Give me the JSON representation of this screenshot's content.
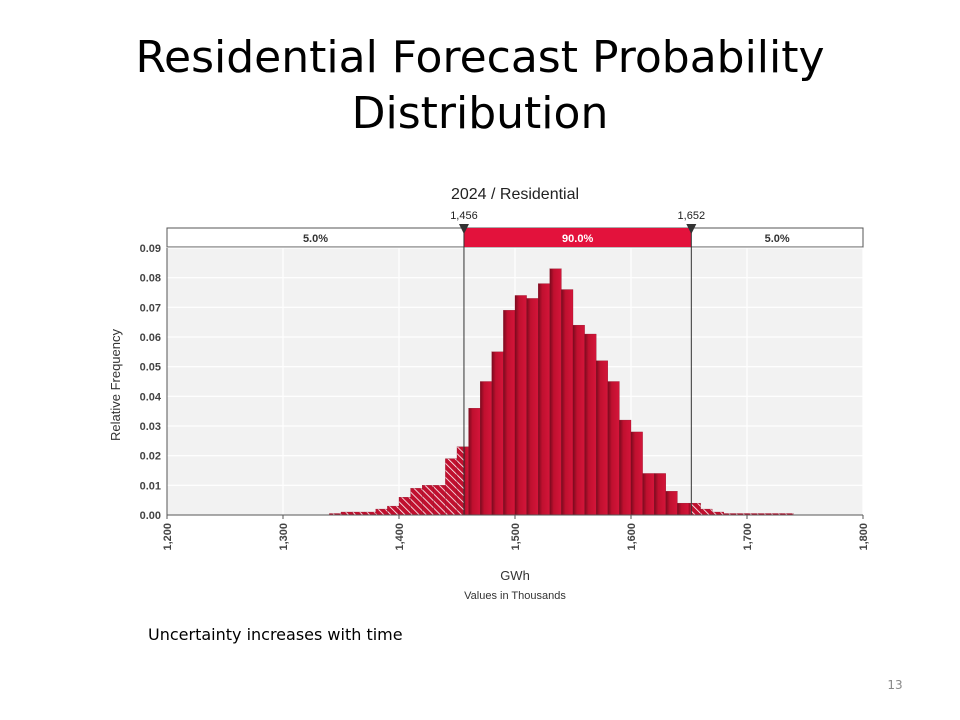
{
  "slide": {
    "title_line1": "Residential Forecast Probability",
    "title_line2": "Distribution",
    "caption": "Uncertainty increases with time",
    "page_number": "13"
  },
  "chart_data": {
    "type": "bar",
    "title": "2024 / Residential",
    "xlabel": "GWh",
    "xsublabel": "Values in Thousands",
    "ylabel": "Relative Frequency",
    "xlim": [
      1200,
      1800
    ],
    "ylim": [
      0,
      0.09
    ],
    "xticks": [
      "1,200",
      "1,300",
      "1,400",
      "1,500",
      "1,600",
      "1,700",
      "1,800"
    ],
    "yticks": [
      "0.00",
      "0.01",
      "0.02",
      "0.03",
      "0.04",
      "0.05",
      "0.06",
      "0.07",
      "0.08",
      "0.09"
    ],
    "bin_start": 1340,
    "bin_width": 10,
    "values": [
      0.0005,
      0.001,
      0.001,
      0.001,
      0.002,
      0.003,
      0.006,
      0.009,
      0.01,
      0.01,
      0.019,
      0.023,
      0.036,
      0.045,
      0.055,
      0.069,
      0.074,
      0.073,
      0.078,
      0.083,
      0.076,
      0.064,
      0.061,
      0.052,
      0.045,
      0.032,
      0.028,
      0.014,
      0.014,
      0.008,
      0.004,
      0.004,
      0.002,
      0.001,
      0.0005,
      0.0005,
      0.0005,
      0.0005,
      0.0005,
      0.0005
    ],
    "lower_marker": {
      "value": 1456,
      "label": "1,456"
    },
    "upper_marker": {
      "value": 1652,
      "label": "1,652"
    },
    "bands": {
      "left": "5.0%",
      "middle": "90.0%",
      "right": "5.0%"
    },
    "colors": {
      "bar": "#c0102f",
      "bar_dark": "#7a0a1e",
      "band": "#e3123c",
      "plot_bg": "#f2f2f2",
      "grid": "#ffffff"
    },
    "grid": true
  }
}
